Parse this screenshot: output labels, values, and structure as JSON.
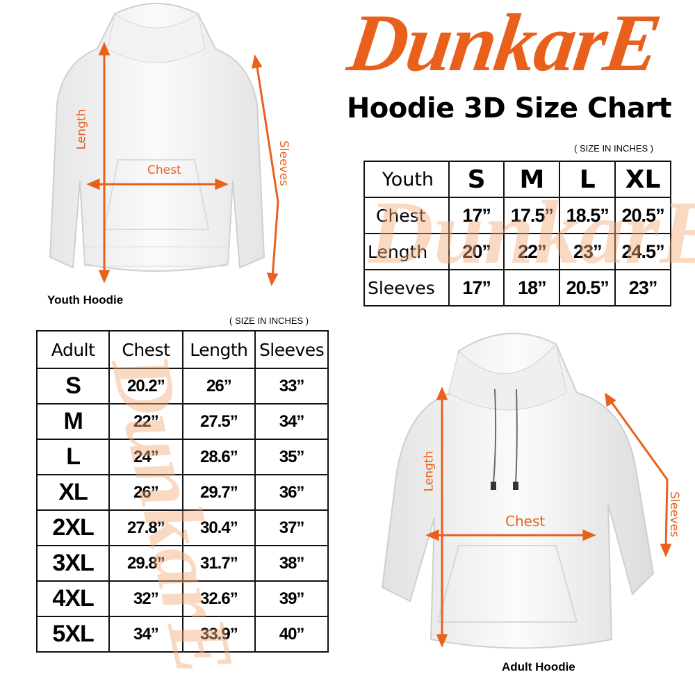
{
  "brand": {
    "logo_text": "DunkarE",
    "color": "#e8601c",
    "watermark_color": "#f4aa78"
  },
  "title": "Hoodie 3D Size Chart",
  "youth": {
    "unit_note": "( SIZE IN INCHES )",
    "image_label": "Youth Hoodie",
    "measure_labels": {
      "length": "Length",
      "chest": "Chest",
      "sleeves": "Sleeves"
    },
    "table": {
      "corner": "Youth",
      "columns": [
        "S",
        "M",
        "L",
        "XL"
      ],
      "rows": [
        {
          "label": "Chest",
          "values": [
            "17”",
            "17.5”",
            "18.5”",
            "20.5”"
          ]
        },
        {
          "label": "Length",
          "values": [
            "20”",
            "22”",
            "23”",
            "24.5”"
          ]
        },
        {
          "label": "Sleeves",
          "values": [
            "17”",
            "18”",
            "20.5”",
            "23”"
          ]
        }
      ]
    }
  },
  "adult": {
    "unit_note": "( SIZE IN INCHES )",
    "image_label": "Adult Hoodie",
    "measure_labels": {
      "length": "Length",
      "chest": "Chest",
      "sleeves": "Sleeves"
    },
    "table": {
      "headers": [
        "Adult",
        "Chest",
        "Length",
        "Sleeves"
      ],
      "rows": [
        {
          "size": "S",
          "values": [
            "20.2”",
            "26”",
            "33”"
          ]
        },
        {
          "size": "M",
          "values": [
            "22”",
            "27.5”",
            "34”"
          ]
        },
        {
          "size": "L",
          "values": [
            "24”",
            "28.6”",
            "35”"
          ]
        },
        {
          "size": "XL",
          "values": [
            "26”",
            "29.7”",
            "36”"
          ]
        },
        {
          "size": "2XL",
          "values": [
            "27.8”",
            "30.4”",
            "37”"
          ]
        },
        {
          "size": "3XL",
          "values": [
            "29.8”",
            "31.7”",
            "38”"
          ]
        },
        {
          "size": "4XL",
          "values": [
            "32”",
            "32.6”",
            "39”"
          ]
        },
        {
          "size": "5XL",
          "values": [
            "34”",
            "33.9”",
            "40”"
          ]
        }
      ]
    }
  }
}
